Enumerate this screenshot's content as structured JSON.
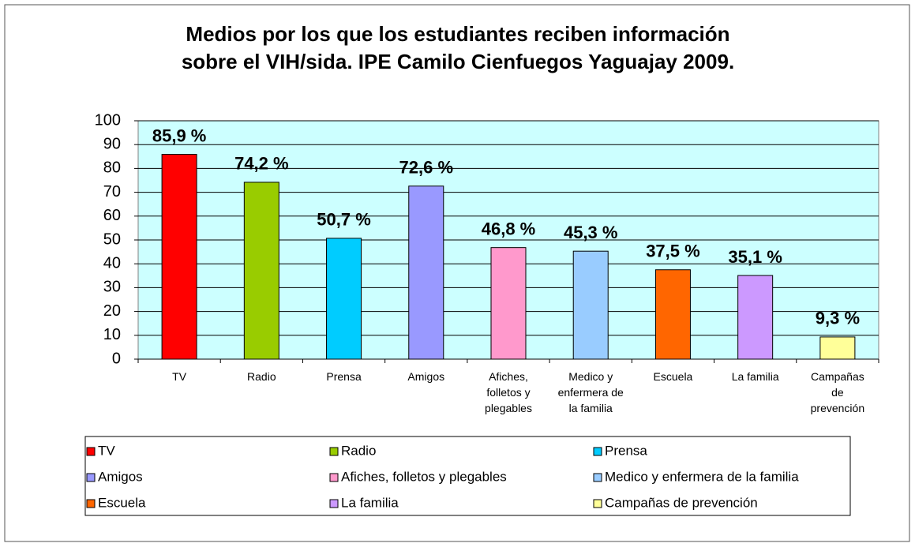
{
  "chart_data": {
    "type": "bar",
    "title": "Medios por los que los estudiantes reciben información sobre el VIH/sida.   IPE Camilo Cienfuegos  Yaguajay 2009.",
    "categories": [
      "TV",
      "Radio",
      "Prensa",
      "Amigos",
      "Afiches, folletos y plegables",
      "Medico y enfermera de la familia",
      "Escuela",
      "La familia",
      "Campañas de prevención"
    ],
    "values": [
      85.9,
      74.2,
      50.7,
      72.6,
      46.8,
      45.3,
      37.5,
      35.1,
      9.3
    ],
    "value_labels": [
      "85,9 %",
      "74,2 %",
      "50,7 %",
      "72,6 %",
      "46,8 %",
      "45,3 %",
      "37,5 %",
      "35,1 %",
      "9,3 %"
    ],
    "colors": [
      "#ff0000",
      "#99cc00",
      "#00ccff",
      "#9999ff",
      "#ff99cc",
      "#99ccff",
      "#ff6600",
      "#cc99ff",
      "#ffff99"
    ],
    "ylim": [
      0,
      100
    ],
    "yticks": [
      0,
      10,
      20,
      30,
      40,
      50,
      60,
      70,
      80,
      90,
      100
    ],
    "grid": true,
    "legend": "bottom"
  }
}
